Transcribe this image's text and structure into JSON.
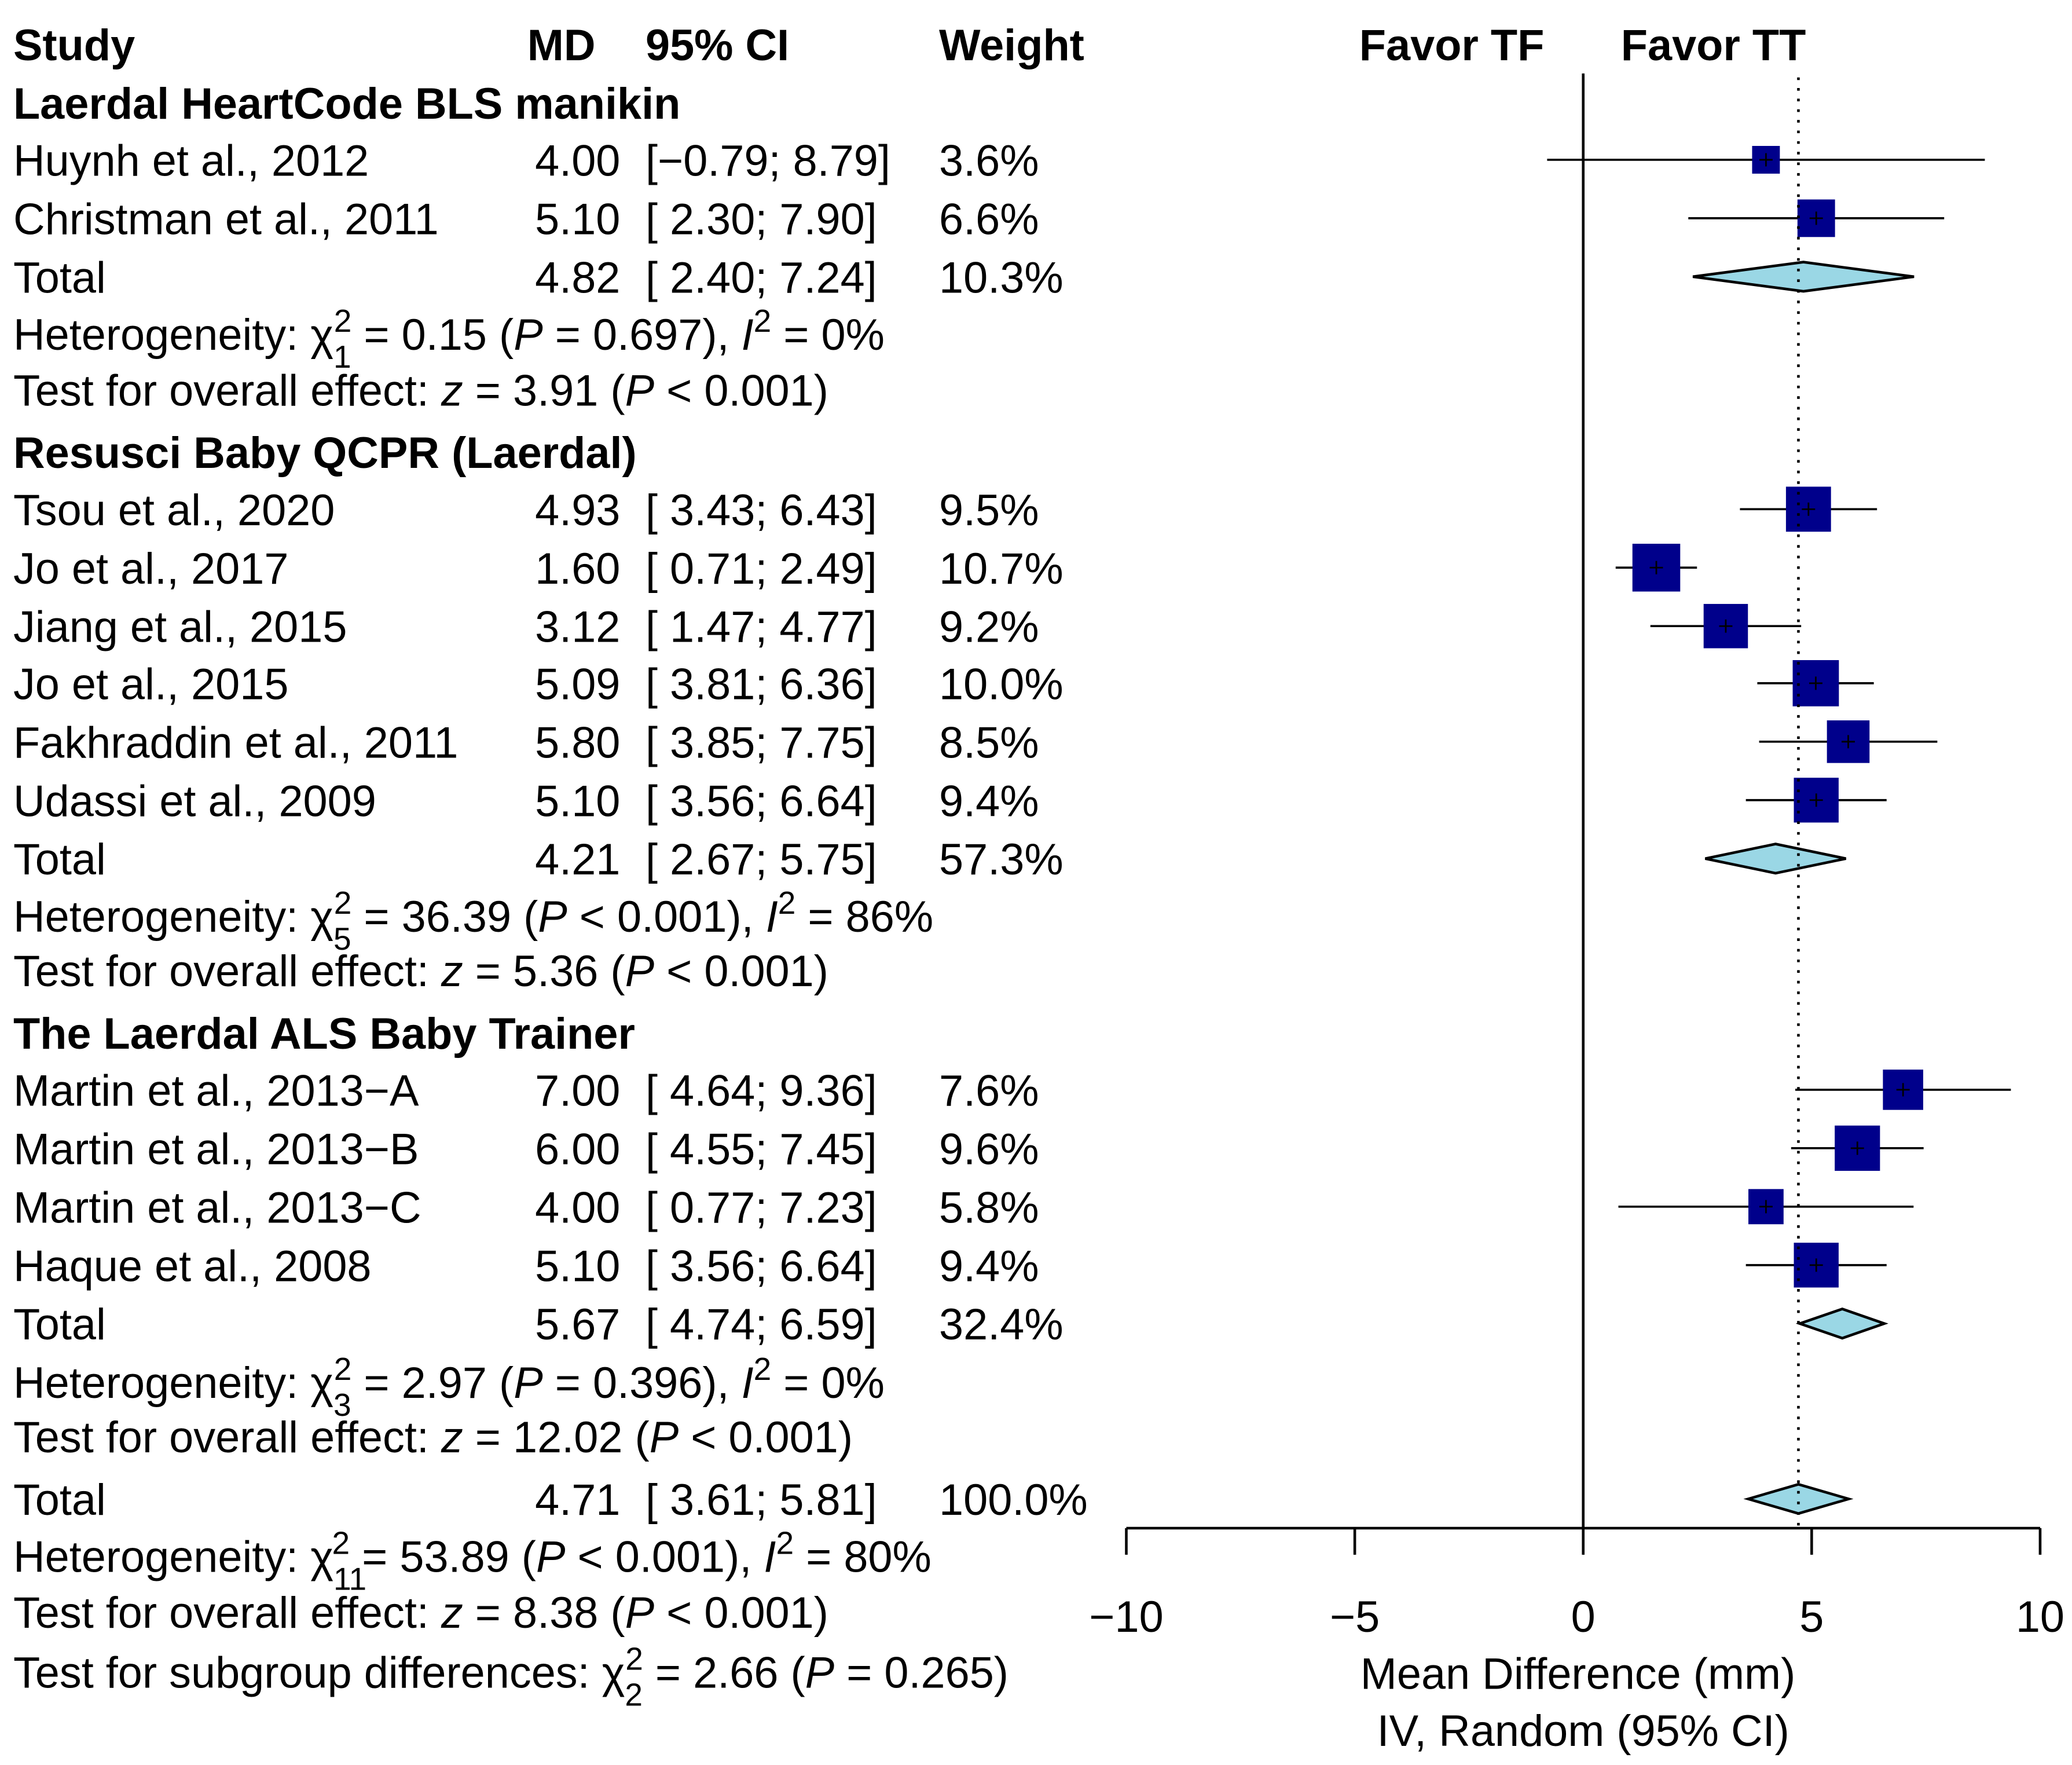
{
  "chart_data": {
    "type": "forest",
    "headers": {
      "study": "Study",
      "md": "MD",
      "ci": "95% CI",
      "weight": "Weight",
      "favor_left": "Favor TF",
      "favor_right": "Favor TT"
    },
    "xlabel": "Mean Difference (mm)",
    "xlabel2": "IV, Random (95% CI)",
    "xlim": [
      -10,
      10
    ],
    "xticks": [
      "−10",
      "−5",
      "0",
      "5",
      "10"
    ],
    "xtick_values": [
      -10,
      -5,
      0,
      5,
      10
    ],
    "reference_line": 0,
    "overall_line": 4.71,
    "colors": {
      "square": "#00008B",
      "diamond": "#9AD7E5"
    },
    "labels": {
      "heterogeneity": "Heterogeneity:",
      "overall_effect": "Test for overall effect:",
      "subgroup": "Test for subgroup differences:",
      "total": "Total"
    },
    "groups": [
      {
        "name": "Laerdal HeartCode BLS manikin",
        "studies": [
          {
            "study": "Huynh et al., 2012",
            "md": 4.0,
            "md_text": "4.00",
            "lo": -0.79,
            "hi": 8.79,
            "ci_text": "[−0.79; 8.79]",
            "weight": 3.6,
            "weight_text": "3.6%"
          },
          {
            "study": "Christman et al., 2011",
            "md": 5.1,
            "md_text": "5.10",
            "lo": 2.3,
            "hi": 7.9,
            "ci_text": "[ 2.30; 7.90]",
            "weight": 6.6,
            "weight_text": "6.6%"
          }
        ],
        "total": {
          "md": 4.82,
          "md_text": "4.82",
          "lo": 2.4,
          "hi": 7.24,
          "ci_text": "[ 2.40; 7.24]",
          "weight_text": "10.3%"
        },
        "het": {
          "df": "1",
          "chi": "= 0.15 (",
          "p": "= 0.697), ",
          "i2": "= 0%"
        },
        "test": {
          "z": "= 3.91 (",
          "p": "< 0.001)"
        }
      },
      {
        "name": "Resusci Baby QCPR (Laerdal)",
        "studies": [
          {
            "study": "Tsou et al., 2020",
            "md": 4.93,
            "md_text": "4.93",
            "lo": 3.43,
            "hi": 6.43,
            "ci_text": "[ 3.43; 6.43]",
            "weight": 9.5,
            "weight_text": "9.5%"
          },
          {
            "study": "Jo et al., 2017",
            "md": 1.6,
            "md_text": "1.60",
            "lo": 0.71,
            "hi": 2.49,
            "ci_text": "[ 0.71; 2.49]",
            "weight": 10.7,
            "weight_text": "10.7%"
          },
          {
            "study": "Jiang et al., 2015",
            "md": 3.12,
            "md_text": "3.12",
            "lo": 1.47,
            "hi": 4.77,
            "ci_text": "[ 1.47; 4.77]",
            "weight": 9.2,
            "weight_text": "9.2%"
          },
          {
            "study": "Jo et al., 2015",
            "md": 5.09,
            "md_text": "5.09",
            "lo": 3.81,
            "hi": 6.36,
            "ci_text": "[ 3.81; 6.36]",
            "weight": 10.0,
            "weight_text": "10.0%"
          },
          {
            "study": "Fakhraddin et al., 2011",
            "md": 5.8,
            "md_text": "5.80",
            "lo": 3.85,
            "hi": 7.75,
            "ci_text": "[ 3.85; 7.75]",
            "weight": 8.5,
            "weight_text": "8.5%"
          },
          {
            "study": "Udassi et al., 2009",
            "md": 5.1,
            "md_text": "5.10",
            "lo": 3.56,
            "hi": 6.64,
            "ci_text": "[ 3.56; 6.64]",
            "weight": 9.4,
            "weight_text": "9.4%"
          }
        ],
        "total": {
          "md": 4.21,
          "md_text": "4.21",
          "lo": 2.67,
          "hi": 5.75,
          "ci_text": "[ 2.67; 5.75]",
          "weight_text": "57.3%"
        },
        "het": {
          "df": "5",
          "chi": "= 36.39 (",
          "p": "< 0.001), ",
          "i2": "= 86%"
        },
        "test": {
          "z": "= 5.36 (",
          "p": "< 0.001)"
        }
      },
      {
        "name": "The Laerdal ALS Baby Trainer",
        "studies": [
          {
            "study": "Martin et al., 2013−A",
            "md": 7.0,
            "md_text": "7.00",
            "lo": 4.64,
            "hi": 9.36,
            "ci_text": "[ 4.64; 9.36]",
            "weight": 7.6,
            "weight_text": "7.6%"
          },
          {
            "study": "Martin et al., 2013−B",
            "md": 6.0,
            "md_text": "6.00",
            "lo": 4.55,
            "hi": 7.45,
            "ci_text": "[ 4.55; 7.45]",
            "weight": 9.6,
            "weight_text": "9.6%"
          },
          {
            "study": "Martin et al., 2013−C",
            "md": 4.0,
            "md_text": "4.00",
            "lo": 0.77,
            "hi": 7.23,
            "ci_text": "[ 0.77; 7.23]",
            "weight": 5.8,
            "weight_text": "5.8%"
          },
          {
            "study": "Haque et al., 2008",
            "md": 5.1,
            "md_text": "5.10",
            "lo": 3.56,
            "hi": 6.64,
            "ci_text": "[ 3.56; 6.64]",
            "weight": 9.4,
            "weight_text": "9.4%"
          }
        ],
        "total": {
          "md": 5.67,
          "md_text": "5.67",
          "lo": 4.74,
          "hi": 6.59,
          "ci_text": "[ 4.74; 6.59]",
          "weight_text": "32.4%"
        },
        "het": {
          "df": "3",
          "chi": "= 2.97 (",
          "p": "= 0.396), ",
          "i2": "= 0%"
        },
        "test": {
          "z": "= 12.02 (",
          "p": "< 0.001)"
        }
      }
    ],
    "overall": {
      "total": {
        "md": 4.71,
        "md_text": "4.71",
        "lo": 3.61,
        "hi": 5.81,
        "ci_text": "[ 3.61; 5.81]",
        "weight_text": "100.0%"
      },
      "het": {
        "df": "11",
        "chi": "= 53.89 (",
        "p": "< 0.001), ",
        "i2": "= 80%"
      },
      "test": {
        "z": "= 8.38 (",
        "p": "< 0.001)"
      },
      "subgroup": {
        "df": "2",
        "chi": "= 2.66 (",
        "p": "= 0.265)"
      }
    }
  }
}
